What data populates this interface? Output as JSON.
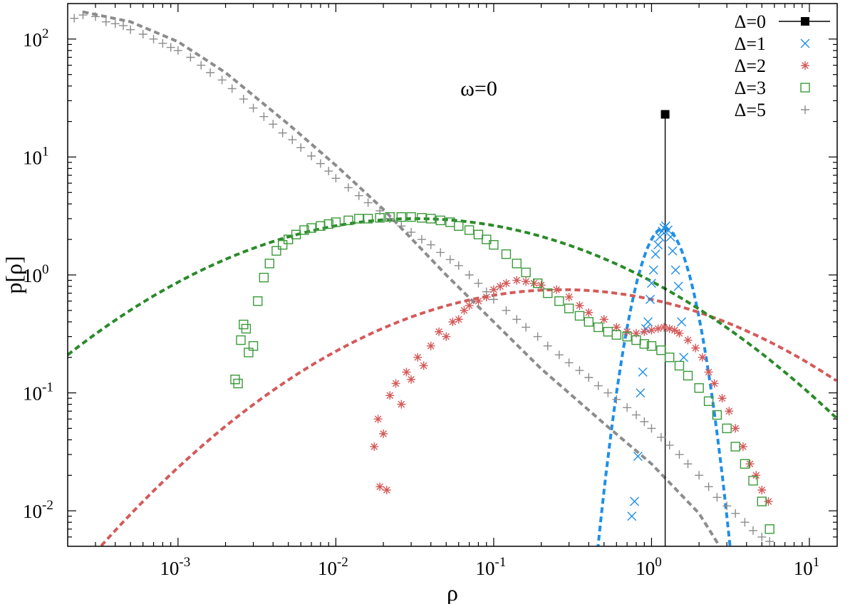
{
  "chart_data": {
    "type": "scatter",
    "xscale": "log",
    "yscale": "log",
    "xlim": [
      0.0002,
      15
    ],
    "ylim": [
      0.005,
      200
    ],
    "xlabel": "ρ",
    "ylabel": "p[ρ]",
    "annotation": "ω=0",
    "legend_position": "top-right",
    "x_ticks": [
      {
        "value": 0.001,
        "base": "10",
        "exp": "-3"
      },
      {
        "value": 0.01,
        "base": "10",
        "exp": "-2"
      },
      {
        "value": 0.1,
        "base": "10",
        "exp": "-1"
      },
      {
        "value": 1,
        "base": "10",
        "exp": "0"
      },
      {
        "value": 10,
        "base": "10",
        "exp": "1"
      }
    ],
    "y_ticks": [
      {
        "value": 0.01,
        "base": "10",
        "exp": "-2"
      },
      {
        "value": 0.1,
        "base": "10",
        "exp": "-1"
      },
      {
        "value": 1,
        "base": "10",
        "exp": "0"
      },
      {
        "value": 10,
        "base": "10",
        "exp": "1"
      },
      {
        "value": 100,
        "base": "10",
        "exp": "2"
      }
    ],
    "series": [
      {
        "name": "Δ=0",
        "color": "#000000",
        "marker": "filled-square",
        "style": "impulse",
        "x": [
          1.22
        ],
        "y": [
          23
        ]
      },
      {
        "name": "Δ=1",
        "color": "#1e8fe8",
        "marker": "x",
        "x": [
          0.75,
          0.78,
          0.82,
          0.85,
          0.88,
          0.92,
          0.95,
          0.98,
          1.0,
          1.03,
          1.06,
          1.1,
          1.13,
          1.17,
          1.2,
          1.23,
          1.27,
          1.32,
          1.36,
          1.42,
          1.48,
          1.55,
          1.6
        ],
        "y": [
          0.009,
          0.012,
          0.029,
          0.1,
          0.15,
          0.35,
          0.4,
          0.62,
          0.85,
          1.1,
          1.5,
          1.8,
          2.1,
          2.35,
          2.5,
          2.6,
          2.4,
          2.1,
          1.6,
          1.1,
          0.8,
          0.4,
          0.2
        ]
      },
      {
        "name": "Δ=2",
        "color": "#d45a5a",
        "marker": "asterisk",
        "x": [
          0.0175,
          0.0185,
          0.019,
          0.02,
          0.021,
          0.022,
          0.024,
          0.026,
          0.028,
          0.03,
          0.033,
          0.036,
          0.04,
          0.045,
          0.05,
          0.055,
          0.06,
          0.065,
          0.07,
          0.08,
          0.09,
          0.1,
          0.11,
          0.12,
          0.14,
          0.16,
          0.18,
          0.2,
          0.25,
          0.3,
          0.35,
          0.4,
          0.5,
          0.6,
          0.7,
          0.8,
          0.9,
          1.0,
          1.1,
          1.2,
          1.3,
          1.4,
          1.5,
          1.7,
          1.9,
          2.1,
          2.3,
          2.5,
          2.8,
          3.1,
          3.4,
          3.8,
          4.2,
          4.6,
          5.0,
          5.5
        ],
        "y": [
          0.035,
          0.06,
          0.016,
          0.045,
          0.015,
          0.095,
          0.12,
          0.08,
          0.15,
          0.13,
          0.2,
          0.17,
          0.25,
          0.33,
          0.3,
          0.4,
          0.42,
          0.5,
          0.55,
          0.6,
          0.65,
          0.75,
          0.8,
          0.85,
          0.9,
          0.88,
          0.85,
          0.82,
          0.75,
          0.65,
          0.55,
          0.48,
          0.42,
          0.36,
          0.33,
          0.32,
          0.33,
          0.34,
          0.35,
          0.36,
          0.35,
          0.34,
          0.32,
          0.28,
          0.24,
          0.2,
          0.15,
          0.12,
          0.09,
          0.07,
          0.05,
          0.035,
          0.025,
          0.02,
          0.015,
          0.012
        ]
      },
      {
        "name": "Δ=3",
        "color": "#3a9a3a",
        "marker": "open-square",
        "x": [
          0.0023,
          0.0024,
          0.0025,
          0.0026,
          0.0027,
          0.0028,
          0.003,
          0.0032,
          0.0035,
          0.0038,
          0.0042,
          0.0046,
          0.005,
          0.0056,
          0.0063,
          0.007,
          0.008,
          0.009,
          0.01,
          0.012,
          0.014,
          0.016,
          0.019,
          0.022,
          0.026,
          0.03,
          0.035,
          0.04,
          0.046,
          0.053,
          0.06,
          0.07,
          0.08,
          0.09,
          0.1,
          0.12,
          0.14,
          0.16,
          0.19,
          0.22,
          0.26,
          0.3,
          0.35,
          0.4,
          0.46,
          0.53,
          0.6,
          0.7,
          0.8,
          0.9,
          1.0,
          1.15,
          1.3,
          1.5,
          1.7,
          2.0,
          2.3,
          2.6,
          3.0,
          3.4,
          3.9,
          4.4,
          5.0,
          5.6
        ],
        "y": [
          0.13,
          0.12,
          0.28,
          0.38,
          0.35,
          0.22,
          0.25,
          0.6,
          0.95,
          1.25,
          1.6,
          1.8,
          2.0,
          2.2,
          2.4,
          2.5,
          2.6,
          2.7,
          2.8,
          2.9,
          3.0,
          3.0,
          3.05,
          3.1,
          3.1,
          3.1,
          3.05,
          3.0,
          2.9,
          2.8,
          2.6,
          2.4,
          2.2,
          2.0,
          1.8,
          1.5,
          1.25,
          1.05,
          0.85,
          0.7,
          0.6,
          0.52,
          0.45,
          0.4,
          0.36,
          0.33,
          0.31,
          0.3,
          0.28,
          0.26,
          0.25,
          0.23,
          0.2,
          0.17,
          0.14,
          0.11,
          0.085,
          0.065,
          0.05,
          0.035,
          0.025,
          0.018,
          0.012,
          0.007
        ]
      },
      {
        "name": "Δ=5",
        "color": "#8c8c8c",
        "marker": "plus",
        "x": [
          0.00022,
          0.00025,
          0.0003,
          0.00035,
          0.0004,
          0.00045,
          0.0005,
          0.0006,
          0.0007,
          0.0008,
          0.0009,
          0.001,
          0.0012,
          0.0014,
          0.0016,
          0.0019,
          0.0022,
          0.0026,
          0.003,
          0.0035,
          0.004,
          0.0046,
          0.0053,
          0.006,
          0.007,
          0.008,
          0.009,
          0.01,
          0.012,
          0.014,
          0.016,
          0.019,
          0.022,
          0.026,
          0.03,
          0.035,
          0.04,
          0.046,
          0.053,
          0.06,
          0.07,
          0.08,
          0.09,
          0.1,
          0.12,
          0.14,
          0.16,
          0.19,
          0.22,
          0.26,
          0.3,
          0.35,
          0.4,
          0.46,
          0.53,
          0.6,
          0.7,
          0.8,
          0.9,
          1.0,
          1.15,
          1.3,
          1.5,
          1.7,
          2.0,
          2.3,
          2.6,
          3.0,
          3.4,
          3.9,
          4.4,
          5.0,
          5.6
        ],
        "y": [
          150,
          160,
          155,
          140,
          135,
          130,
          120,
          110,
          100,
          92,
          85,
          80,
          70,
          60,
          52,
          45,
          38,
          31,
          26,
          22,
          19,
          16,
          14,
          12,
          10.2,
          8.8,
          7.6,
          6.6,
          5.5,
          4.7,
          4.1,
          3.5,
          3.0,
          2.6,
          2.3,
          2.0,
          1.8,
          1.55,
          1.35,
          1.2,
          1.0,
          0.85,
          0.72,
          0.62,
          0.5,
          0.42,
          0.36,
          0.3,
          0.25,
          0.21,
          0.18,
          0.155,
          0.135,
          0.115,
          0.1,
          0.088,
          0.075,
          0.065,
          0.057,
          0.05,
          0.042,
          0.036,
          0.03,
          0.025,
          0.02,
          0.016,
          0.013,
          0.011,
          0.0095,
          0.008,
          0.0068,
          0.006,
          0.0055
        ]
      }
    ],
    "fits": [
      {
        "name": "fit-delta-1",
        "color": "#1e8fe8",
        "kind": "lognormal",
        "peak_x": 1.2,
        "peak_y": 2.5,
        "sigma": 0.18
      },
      {
        "name": "fit-delta-2",
        "color": "#d45a5a",
        "kind": "lognormal",
        "peak_x": 0.27,
        "peak_y": 0.75,
        "sigma": 1.4
      },
      {
        "name": "fit-delta-3",
        "color": "#2a8a2a",
        "kind": "lognormal",
        "peak_x": 0.032,
        "peak_y": 3.0,
        "sigma": 1.45
      },
      {
        "name": "fit-delta-5",
        "color": "#8c8c8c",
        "kind": "power-law-tail",
        "points": [
          [
            0.00025,
            170
          ],
          [
            0.0005,
            140
          ],
          [
            0.001,
            95
          ],
          [
            0.002,
            52
          ],
          [
            0.005,
            19
          ],
          [
            0.01,
            8.5
          ],
          [
            0.02,
            3.6
          ],
          [
            0.05,
            1.0
          ],
          [
            0.1,
            0.4
          ],
          [
            0.2,
            0.16
          ],
          [
            0.5,
            0.055
          ],
          [
            1.0,
            0.025
          ],
          [
            2.0,
            0.0095
          ],
          [
            2.7,
            0.005
          ]
        ]
      }
    ]
  }
}
